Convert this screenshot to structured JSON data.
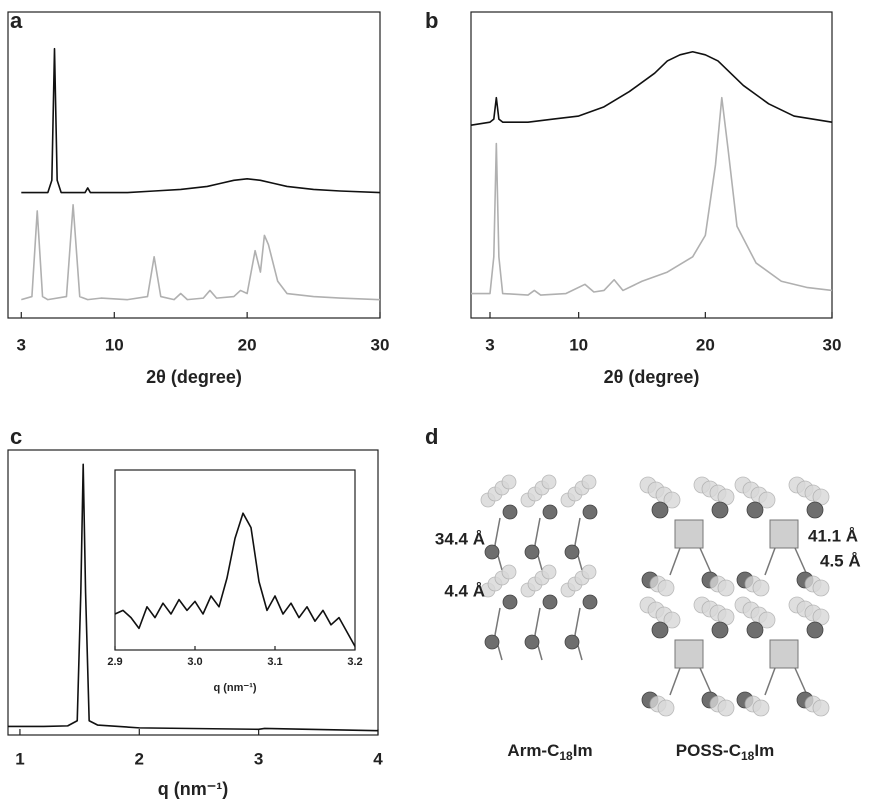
{
  "chart_data": [
    {
      "type": "line",
      "panel": "a",
      "x_label": "2θ (degree)",
      "xlim": [
        2,
        30
      ],
      "ylim": [
        0,
        100
      ],
      "xticks": [
        3,
        10,
        20,
        30
      ],
      "series": [
        {
          "color": "#111111",
          "x": [
            3,
            4,
            5,
            5.3,
            5.5,
            5.7,
            6,
            7,
            7.8,
            8,
            8.2,
            9,
            11,
            13,
            15,
            17,
            18,
            19,
            20,
            21,
            22,
            23,
            25,
            27,
            30
          ],
          "values": [
            41,
            41,
            41,
            45,
            88,
            45,
            41,
            41,
            41,
            42.5,
            41,
            41,
            41,
            41.5,
            42,
            43,
            44,
            45,
            45.5,
            45,
            44,
            43,
            42,
            41.5,
            41
          ]
        },
        {
          "color": "#b0b0b0",
          "x": [
            3,
            3.8,
            4.2,
            4.6,
            5,
            6.4,
            6.9,
            7.4,
            8,
            9,
            11,
            12.5,
            13,
            13.5,
            14.5,
            15,
            15.5,
            16.7,
            17.2,
            17.7,
            19,
            19.5,
            20,
            20.6,
            21,
            21.3,
            21.6,
            22.3,
            23,
            25,
            27,
            30
          ],
          "values": [
            6,
            7,
            35,
            7,
            6,
            7,
            37,
            7,
            6,
            6.5,
            6,
            7,
            20,
            7,
            6,
            8,
            6,
            6.5,
            9,
            6.5,
            7,
            9,
            8,
            22,
            15,
            27,
            24,
            12,
            8,
            7,
            6.5,
            6
          ]
        }
      ]
    },
    {
      "type": "line",
      "panel": "b",
      "x_label": "2θ (degree)",
      "xlim": [
        1.5,
        30
      ],
      "ylim": [
        0,
        100
      ],
      "xticks": [
        3,
        10,
        20,
        30
      ],
      "series": [
        {
          "color": "#111111",
          "x": [
            1.5,
            3,
            3.3,
            3.5,
            3.7,
            4,
            6,
            8,
            10,
            12,
            14,
            16,
            17,
            18,
            19,
            20,
            21,
            22,
            23,
            25,
            27,
            30
          ],
          "values": [
            63,
            64,
            65,
            72,
            65,
            64,
            64,
            65,
            66,
            69,
            74,
            80,
            84,
            86,
            87,
            86,
            84,
            80,
            76,
            70,
            66,
            64
          ]
        },
        {
          "color": "#b0b0b0",
          "x": [
            1.5,
            3,
            3.3,
            3.5,
            3.7,
            4,
            6,
            6.5,
            7,
            9,
            10.5,
            11.2,
            12,
            12.8,
            13.5,
            15,
            17,
            19,
            20,
            20.8,
            21.3,
            21.8,
            22.5,
            24,
            26,
            28,
            30
          ],
          "values": [
            8,
            8,
            20,
            57,
            20,
            8,
            7.5,
            9,
            7.5,
            8,
            11,
            8.5,
            9,
            12.5,
            9,
            12,
            15,
            20,
            27,
            50,
            72,
            55,
            30,
            18,
            12,
            10,
            9
          ]
        }
      ]
    },
    {
      "type": "line",
      "panel": "c",
      "x_label": "q (nm⁻¹)",
      "xlim": [
        0.9,
        4
      ],
      "ylim": [
        0,
        100
      ],
      "xticks": [
        1,
        2,
        3,
        4
      ],
      "series": [
        {
          "color": "#111111",
          "x": [
            0.9,
            1.2,
            1.4,
            1.48,
            1.51,
            1.53,
            1.55,
            1.58,
            1.65,
            2,
            3,
            3.05,
            4
          ],
          "values": [
            3,
            3,
            3.2,
            5,
            50,
            95,
            50,
            5,
            3.5,
            2.5,
            2,
            2.3,
            1.5
          ]
        }
      ]
    },
    {
      "type": "line",
      "inset": true,
      "x_label": "q (nm⁻¹)",
      "xlim": [
        2.9,
        3.2
      ],
      "ylim": [
        0,
        100
      ],
      "xticks": [
        2.9,
        {
          "value": 3,
          "label": "3.0"
        },
        3.1,
        3.2
      ],
      "series": [
        {
          "color": "#111111",
          "x": [
            2.9,
            2.91,
            2.92,
            2.93,
            2.94,
            2.95,
            2.96,
            2.97,
            2.98,
            2.99,
            3.0,
            3.01,
            3.02,
            3.03,
            3.04,
            3.05,
            3.06,
            3.07,
            3.08,
            3.09,
            3.1,
            3.11,
            3.12,
            3.13,
            3.14,
            3.15,
            3.16,
            3.17,
            3.18,
            3.19,
            3.2
          ],
          "values": [
            20,
            22,
            18,
            12,
            24,
            18,
            26,
            20,
            28,
            22,
            27,
            20,
            30,
            24,
            40,
            62,
            76,
            68,
            38,
            22,
            30,
            20,
            26,
            18,
            24,
            16,
            22,
            14,
            18,
            10,
            2
          ]
        }
      ]
    }
  ],
  "illustration": {
    "panel": "d",
    "labels": [
      "34.4 Å",
      "4.4 Å",
      "41.1 Å",
      "4.5 Å"
    ],
    "names": [
      {
        "prefix": "Arm-C",
        "sub": "18",
        "suffix": "Im"
      },
      {
        "prefix": "POSS-C",
        "sub": "18",
        "suffix": "Im"
      }
    ]
  }
}
